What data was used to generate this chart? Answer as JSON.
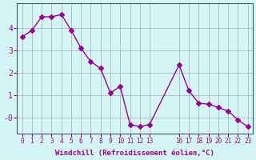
{
  "x": [
    0,
    1,
    2,
    3,
    4,
    5,
    6,
    7,
    8,
    9,
    10,
    11,
    12,
    13,
    16,
    17,
    18,
    19,
    20,
    21,
    22,
    23
  ],
  "y": [
    3.6,
    3.9,
    4.5,
    4.5,
    4.6,
    3.9,
    3.1,
    2.5,
    2.2,
    1.1,
    1.4,
    -0.3,
    -0.4,
    -0.3,
    2.35,
    1.2,
    0.65,
    0.6,
    0.45,
    0.3,
    -0.1,
    -0.4
  ],
  "line_color": "#990099",
  "marker": "D",
  "marker_size": 3,
  "bg_color": "#d4f5f5",
  "grid_color": "#aaaaaa",
  "xlabel": "Windchill (Refroidissement éolien,°C)",
  "xlabel_color": "#990099",
  "ylim": [
    -0.7,
    5.1
  ],
  "xlim": [
    -0.5,
    23.5
  ],
  "tick_color": "#990099",
  "axis_color": "#555555",
  "figsize": [
    3.2,
    2.0
  ],
  "dpi": 100,
  "xtick_positions": [
    0,
    1,
    2,
    3,
    4,
    5,
    6,
    7,
    8,
    9,
    10,
    11,
    12,
    13,
    16,
    17,
    18,
    19,
    20,
    21,
    22,
    23
  ],
  "xtick_labels": [
    "0",
    "1",
    "2",
    "3",
    "4",
    "5",
    "6",
    "7",
    "8",
    "9",
    "10",
    "11",
    "12",
    "13",
    "16",
    "17",
    "18",
    "19",
    "20",
    "21",
    "22",
    "23"
  ],
  "ytick_positions": [
    0,
    1,
    2,
    3,
    4
  ],
  "ytick_labels": [
    "-0",
    "1",
    "2",
    "3",
    "4"
  ]
}
